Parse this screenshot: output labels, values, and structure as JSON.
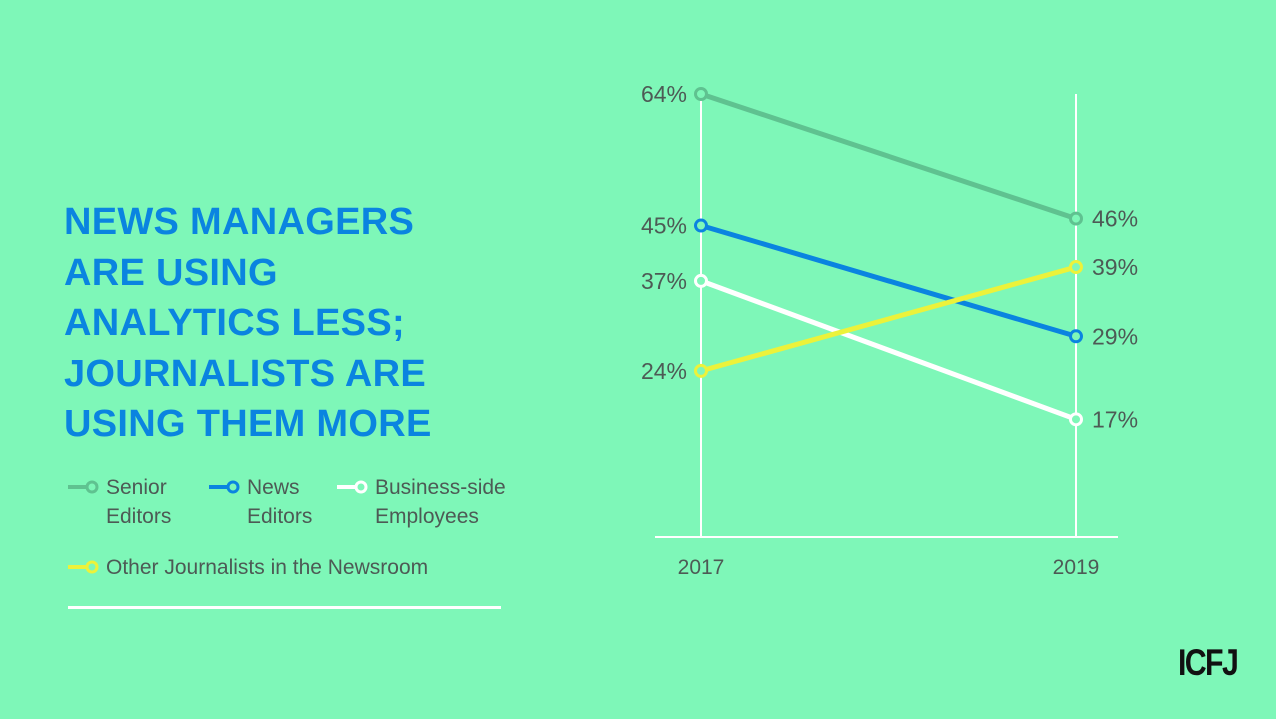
{
  "title_lines": [
    "NEWS MANAGERS",
    "ARE USING",
    "ANALYTICS LESS;",
    "JOURNALISTS ARE",
    "USING THEM MORE"
  ],
  "legend": [
    {
      "label": "Senior\nEditors",
      "color": "#5fc290"
    },
    {
      "label": "News\nEditors",
      "color": "#0a84e0"
    },
    {
      "label": "Business-side\nEmployees",
      "color": "#ffffff"
    },
    {
      "label": "Other Journalists in the Newsroom",
      "color": "#ecf23a"
    }
  ],
  "chart_data": {
    "type": "line",
    "x": [
      "2017",
      "2019"
    ],
    "series": [
      {
        "name": "Senior Editors",
        "color": "#5fc290",
        "values": [
          64,
          46
        ],
        "labels": [
          "64%",
          "46%"
        ]
      },
      {
        "name": "News Editors",
        "color": "#0a84e0",
        "values": [
          45,
          29
        ],
        "labels": [
          "45%",
          "29%"
        ]
      },
      {
        "name": "Business-side Employees",
        "color": "#ffffff",
        "values": [
          37,
          17
        ],
        "labels": [
          "37%",
          "17%"
        ]
      },
      {
        "name": "Other Journalists in the Newsroom",
        "color": "#ecf23a",
        "values": [
          24,
          39
        ],
        "labels": [
          "24%",
          "39%"
        ]
      }
    ],
    "ylim": [
      0,
      64
    ],
    "grid": false,
    "legend": "left"
  },
  "logo_text": "ICFJ"
}
